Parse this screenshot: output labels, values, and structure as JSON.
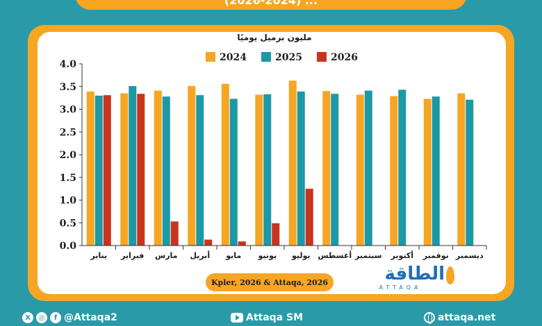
{
  "header": {
    "title": "(2026-2024) ..."
  },
  "chart_data": {
    "type": "bar",
    "title": "",
    "ylabel": "مليون برميل يوميًا",
    "xlabel": "",
    "ylim": [
      0,
      4.0
    ],
    "yticks": [
      "0.0",
      "0.5",
      "1.0",
      "1.5",
      "2.0",
      "2.5",
      "3.0",
      "3.5",
      "4.0"
    ],
    "grid": false,
    "legend_position": "top",
    "categories": [
      "يناير",
      "فبراير",
      "مارس",
      "أبريل",
      "مايو",
      "يونيو",
      "يوليو",
      "أغسطس",
      "سبتمبر",
      "أكتوبر",
      "نوفمبر",
      "ديسمبر"
    ],
    "series": [
      {
        "name": "2024",
        "color": "#f6a623",
        "values": [
          3.39,
          3.35,
          3.41,
          3.51,
          3.56,
          3.32,
          3.63,
          3.4,
          3.32,
          3.29,
          3.23,
          3.35
        ]
      },
      {
        "name": "2025",
        "color": "#1d98a6",
        "values": [
          3.3,
          3.51,
          3.28,
          3.31,
          3.23,
          3.33,
          3.39,
          3.34,
          3.41,
          3.43,
          3.28,
          3.21
        ]
      },
      {
        "name": "2026",
        "color": "#c8341d",
        "values": [
          3.31,
          3.34,
          0.53,
          0.13,
          0.09,
          0.49,
          1.25,
          null,
          null,
          null,
          null,
          null
        ]
      }
    ]
  },
  "source": "Kpler, 2026 & Attaqa, 2026",
  "logo": {
    "name": "الطاقة",
    "sub": "ATTAQA"
  },
  "footer": {
    "social_handle": "@Attaqa2",
    "youtube_handle": "Attaqa SM",
    "website": "attaqa.net"
  }
}
